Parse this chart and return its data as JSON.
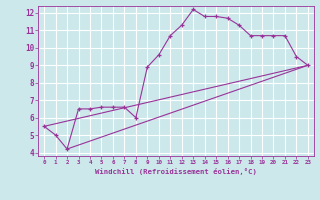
{
  "background_color": "#cce8eb",
  "grid_color": "#ffffff",
  "line_color": "#993399",
  "xlabel": "Windchill (Refroidissement éolien,°C)",
  "xlim": [
    -0.5,
    23.5
  ],
  "ylim": [
    3.8,
    12.4
  ],
  "yticks": [
    4,
    5,
    6,
    7,
    8,
    9,
    10,
    11,
    12
  ],
  "xticks": [
    0,
    1,
    2,
    3,
    4,
    5,
    6,
    7,
    8,
    9,
    10,
    11,
    12,
    13,
    14,
    15,
    16,
    17,
    18,
    19,
    20,
    21,
    22,
    23
  ],
  "series1_x": [
    0,
    1,
    2,
    3,
    4,
    5,
    6,
    7,
    8,
    9,
    10,
    11,
    12,
    13,
    14,
    15,
    16,
    17,
    18,
    19,
    20,
    21,
    22,
    23
  ],
  "series1_y": [
    5.5,
    5.0,
    4.2,
    6.5,
    6.5,
    6.6,
    6.6,
    6.6,
    6.0,
    8.9,
    9.6,
    10.7,
    11.3,
    12.2,
    11.8,
    11.8,
    11.7,
    11.3,
    10.7,
    10.7,
    10.7,
    10.7,
    9.5,
    9.0
  ],
  "series2_x": [
    0,
    23
  ],
  "series2_y": [
    5.5,
    9.0
  ],
  "series3_x": [
    2,
    23
  ],
  "series3_y": [
    4.2,
    9.0
  ]
}
